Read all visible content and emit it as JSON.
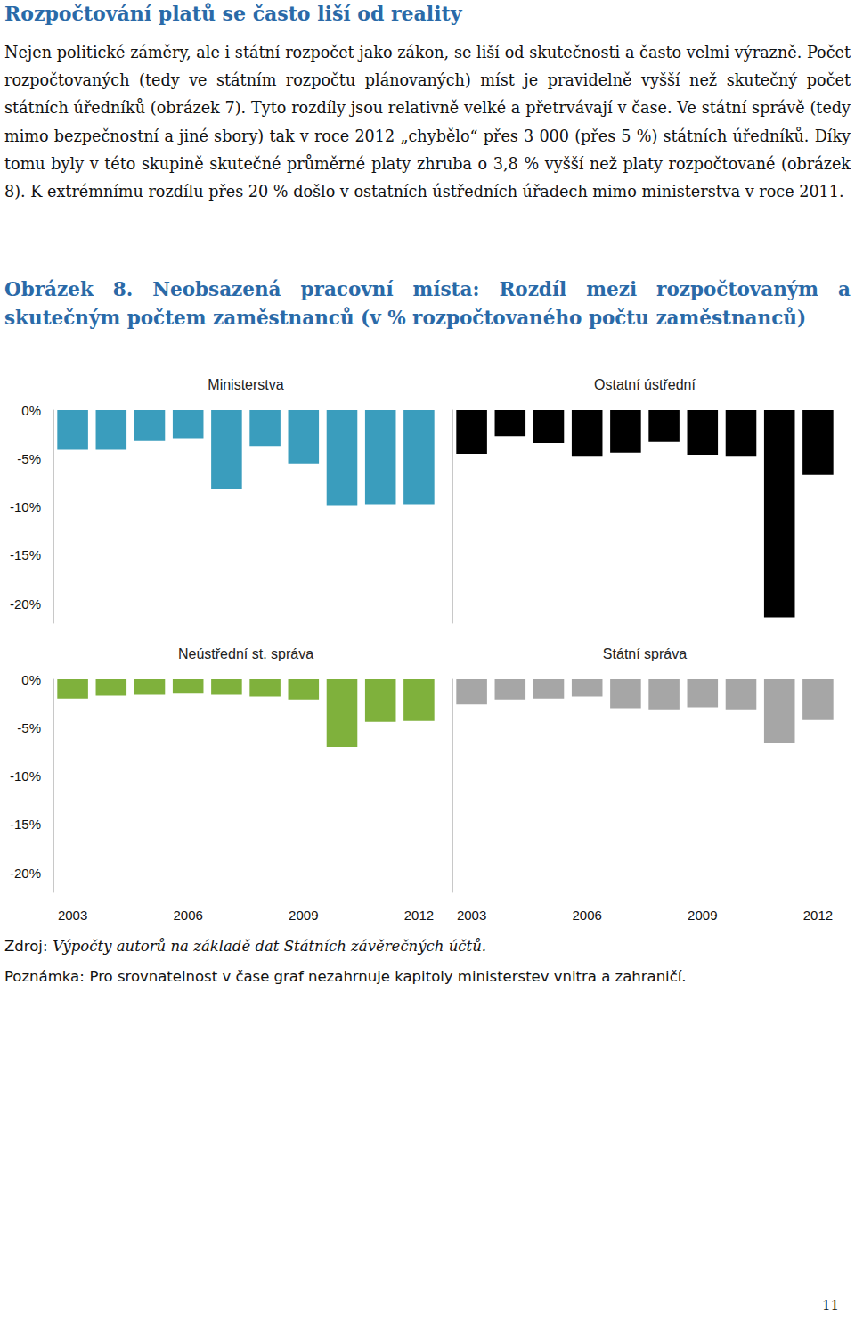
{
  "heading": "Rozpočtování platů se často liší od reality",
  "paragraph": "Nejen politické záměry, ale i státní rozpočet jako zákon, se liší od skutečnosti a často velmi výrazně. Počet rozpočtovaných (tedy ve státním rozpočtu plánovaných) míst je pravidelně vyšší než skutečný počet státních úředníků (obrázek 7). Tyto rozdíly jsou relativně velké a přetrvávají v čase. Ve státní správě (tedy mimo bezpečnostní a jiné sbory) tak v roce 2012 „chybělo“ přes 3 000 (přes 5 %) státních úředníků. Díky tomu byly v této skupině skutečné průměrné platy zhruba o 3,8 % vyšší než platy rozpočtované (obrázek 8). K extrémnímu rozdílu přes 20 % došlo v ostatních ústředních úřadech mimo ministerstva v roce 2011.",
  "figure_title": "Obrázek 8. Neobsazená pracovní místa: Rozdíl mezi rozpočtovaným a skutečným počtem zaměstnanců (v % rozpočtovaného počtu zaměstnanců)",
  "chart_data": [
    {
      "type": "bar",
      "title": "Ministerstva",
      "categories": [
        "2003",
        null,
        null,
        "2006",
        null,
        null,
        "2009",
        null,
        null,
        "2012"
      ],
      "values": [
        -4.1,
        -4.1,
        -3.2,
        -2.9,
        -8.1,
        -3.7,
        -5.5,
        -9.9,
        -9.7,
        -9.7
      ],
      "color": "#3a9dbd",
      "ylim": [
        -22,
        0
      ],
      "yticks": [
        {
          "value": 0,
          "label": "0%"
        },
        {
          "value": -5,
          "label": "-5%"
        },
        {
          "value": -10,
          "label": "-10%"
        },
        {
          "value": -15,
          "label": "-15%"
        },
        {
          "value": -20,
          "label": "-20%"
        }
      ],
      "grid": false,
      "tick_labels": "y"
    },
    {
      "type": "bar",
      "title": "Ostatní ústřední",
      "categories": [
        "2003",
        null,
        null,
        "2006",
        null,
        null,
        "2009",
        null,
        null,
        "2012"
      ],
      "values": [
        -4.5,
        -2.7,
        -3.4,
        -4.8,
        -4.4,
        -3.3,
        -4.6,
        -4.8,
        -21.4,
        -6.7
      ],
      "color": "#000000",
      "ylim": [
        -22,
        0
      ],
      "yticks": [
        {
          "value": 0,
          "label": "0%"
        },
        {
          "value": -5,
          "label": "-5%"
        },
        {
          "value": -10,
          "label": "-10%"
        },
        {
          "value": -15,
          "label": "-15%"
        },
        {
          "value": -20,
          "label": "-20%"
        }
      ],
      "grid": false,
      "tick_labels": false
    },
    {
      "type": "bar",
      "title": "Neústřední st. správa",
      "categories": [
        "2003",
        null,
        null,
        "2006",
        null,
        null,
        "2009",
        null,
        null,
        "2012"
      ],
      "values": [
        -2.0,
        -1.7,
        -1.6,
        -1.4,
        -1.6,
        -1.8,
        -2.1,
        -7.0,
        -4.4,
        -4.3
      ],
      "color": "#7fb13c",
      "ylim": [
        -22,
        0
      ],
      "yticks": [
        {
          "value": 0,
          "label": "0%"
        },
        {
          "value": -5,
          "label": "-5%"
        },
        {
          "value": -10,
          "label": "-10%"
        },
        {
          "value": -15,
          "label": "-15%"
        },
        {
          "value": -20,
          "label": "-20%"
        }
      ],
      "grid": false,
      "tick_labels": true
    },
    {
      "type": "bar",
      "title": "Státní správa",
      "categories": [
        "2003",
        null,
        null,
        "2006",
        null,
        null,
        "2009",
        null,
        null,
        "2012"
      ],
      "values": [
        -2.6,
        -2.1,
        -2.0,
        -1.8,
        -3.0,
        -3.1,
        -2.9,
        -3.1,
        -6.6,
        -4.2
      ],
      "color": "#a6a6a6",
      "ylim": [
        -22,
        0
      ],
      "yticks": [
        {
          "value": 0,
          "label": "0%"
        },
        {
          "value": -5,
          "label": "-5%"
        },
        {
          "value": -10,
          "label": "-10%"
        },
        {
          "value": -15,
          "label": "-15%"
        },
        {
          "value": -20,
          "label": "-20%"
        }
      ],
      "grid": false,
      "tick_labels": "x"
    }
  ],
  "source": {
    "label": "Zdroj:",
    "text": "Výpočty autorů na základě dat Státních závěrečných účtů."
  },
  "note": {
    "label": "Poznámka:",
    "text": "Pro srovnatelnost v čase graf nezahrnuje kapitoly ministerstev vnitra a zahraničí."
  },
  "page_number": "11"
}
